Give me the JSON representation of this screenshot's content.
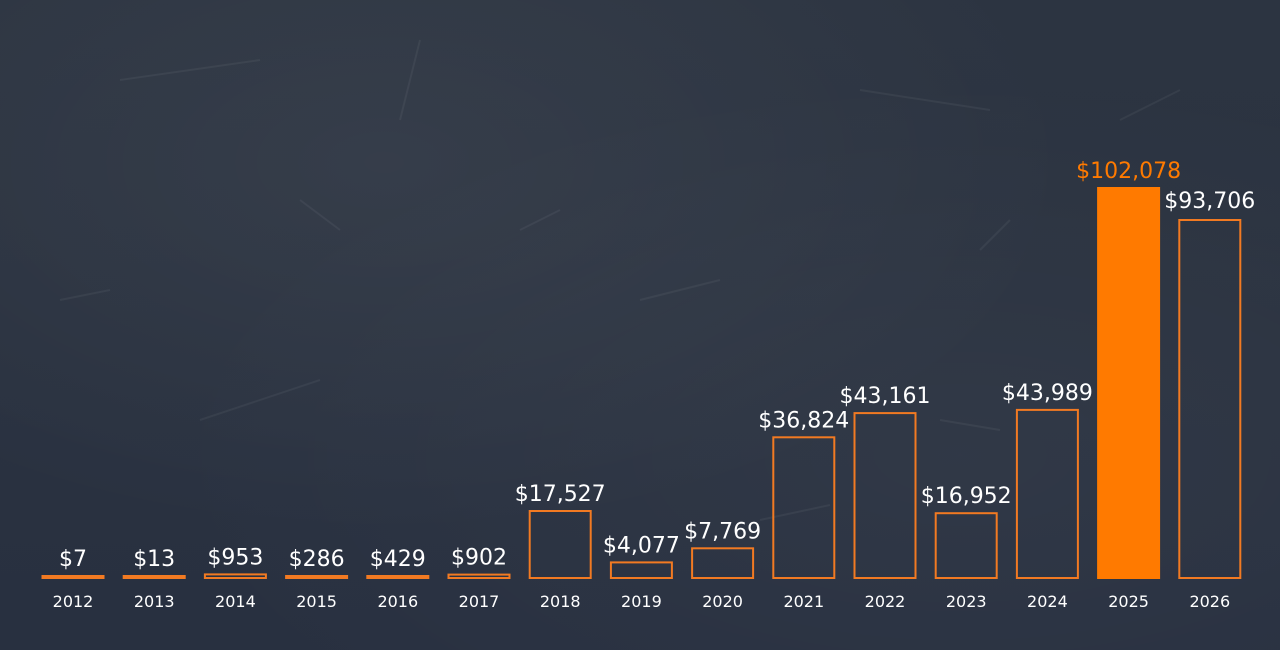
{
  "chart_data": {
    "type": "bar",
    "categories": [
      "2012",
      "2013",
      "2014",
      "2015",
      "2016",
      "2017",
      "2018",
      "2019",
      "2020",
      "2021",
      "2022",
      "2023",
      "2024",
      "2025",
      "2026"
    ],
    "values": [
      7,
      13,
      953,
      286,
      429,
      902,
      17527,
      4077,
      7769,
      36824,
      43161,
      16952,
      43989,
      102078,
      93706
    ],
    "value_labels": [
      "$7",
      "$13",
      "$953",
      "$286",
      "$429",
      "$902",
      "$17,527",
      "$4,077",
      "$7,769",
      "$36,824",
      "$43,161",
      "$16,952",
      "$43,989",
      "$102,078",
      "$93,706"
    ],
    "highlight_category": "2025",
    "title": "",
    "xlabel": "",
    "ylabel": "",
    "ylim": [
      0,
      102078
    ],
    "grid": false,
    "legend": "none"
  },
  "colors": {
    "accent": "#ff7a00",
    "bar_outline": "#f27a22",
    "label_text": "#ffffff",
    "highlight_label_text": "#ff7a00",
    "background": "#2b3340"
  }
}
